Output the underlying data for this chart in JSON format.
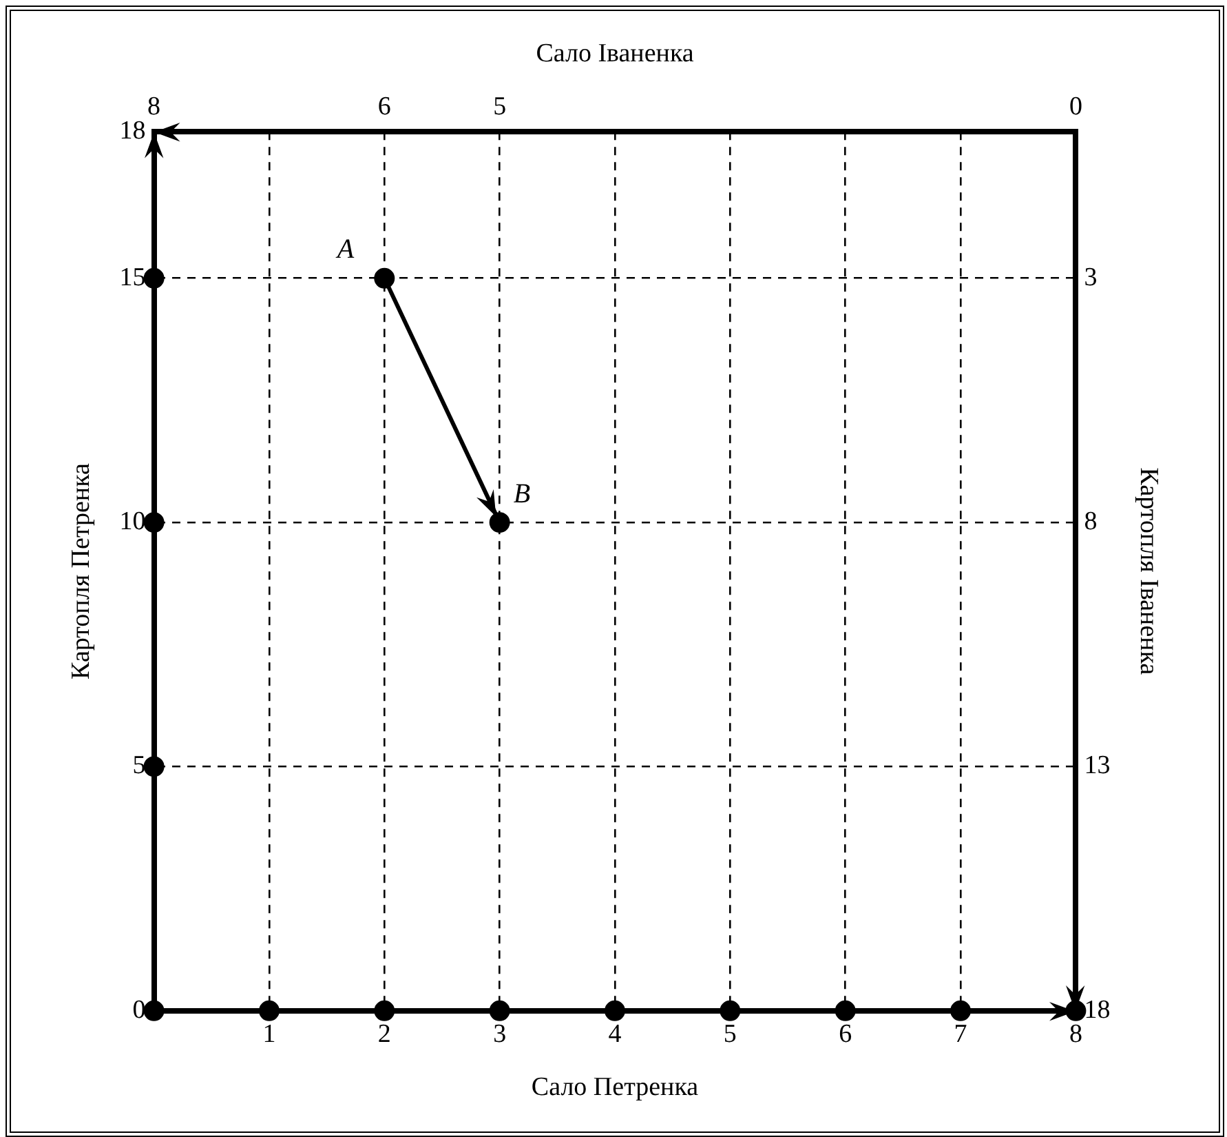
{
  "chart_data": {
    "type": "line",
    "xlabel": "Сало Петренка",
    "x2label": "Сало Іваненка",
    "ylabel": "Картопля Петренка",
    "y2label": "Картопля Іваненка",
    "xlim": [
      0,
      8
    ],
    "xticks": [
      {
        "value": 0,
        "label": null
      },
      1,
      2,
      3,
      4,
      5,
      6,
      7,
      8
    ],
    "ylim": [
      0,
      18
    ],
    "yticks": [
      0,
      5,
      10,
      15,
      18
    ],
    "x2lim": [
      8,
      0
    ],
    "x2ticks": [
      8,
      6,
      5,
      0
    ],
    "y2lim": [
      18,
      0
    ],
    "y2ticks": [
      3,
      8,
      13,
      18
    ],
    "grid": true,
    "legend": false,
    "marker": "circle",
    "line_style": "solid",
    "series": [
      {
        "x": [
          2,
          3
        ],
        "values": [
          15,
          10
        ],
        "color": "#000000"
      },
      {
        "type": "scatter",
        "x": [
          0,
          0,
          0,
          0,
          1,
          2,
          3,
          4,
          5,
          6,
          7,
          8
        ],
        "values": [
          0,
          5,
          10,
          15,
          0,
          0,
          0,
          0,
          0,
          0,
          0,
          0
        ],
        "color": "#000000"
      }
    ],
    "annotations": [
      {
        "text": "A",
        "x": 2,
        "y": 15
      },
      {
        "text": "B",
        "x": 3,
        "y": 10
      }
    ]
  }
}
